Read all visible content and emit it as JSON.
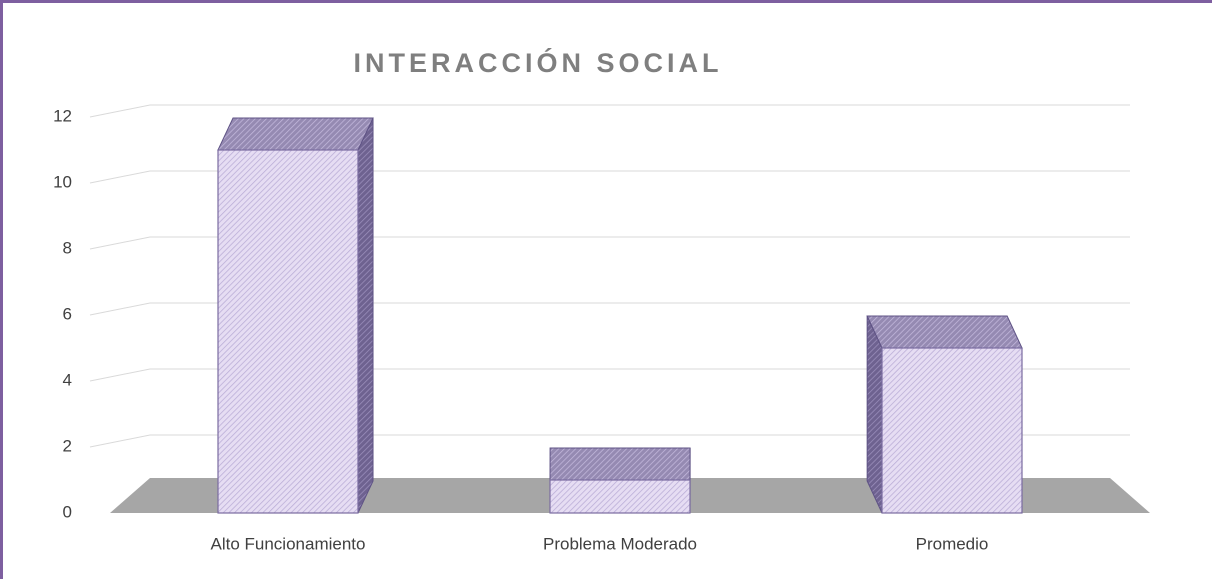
{
  "chart_data": {
    "type": "bar3d",
    "title": "INTERACCIÓN SOCIAL",
    "categories": [
      "Alto Funcionamiento",
      "Problema Moderado",
      "Promedio"
    ],
    "values": [
      11,
      1,
      5
    ],
    "color": "#e2d9f0",
    "ylim": [
      0,
      12
    ],
    "yticks": [
      0,
      2,
      4,
      6,
      8,
      10,
      12
    ],
    "grid": true
  }
}
